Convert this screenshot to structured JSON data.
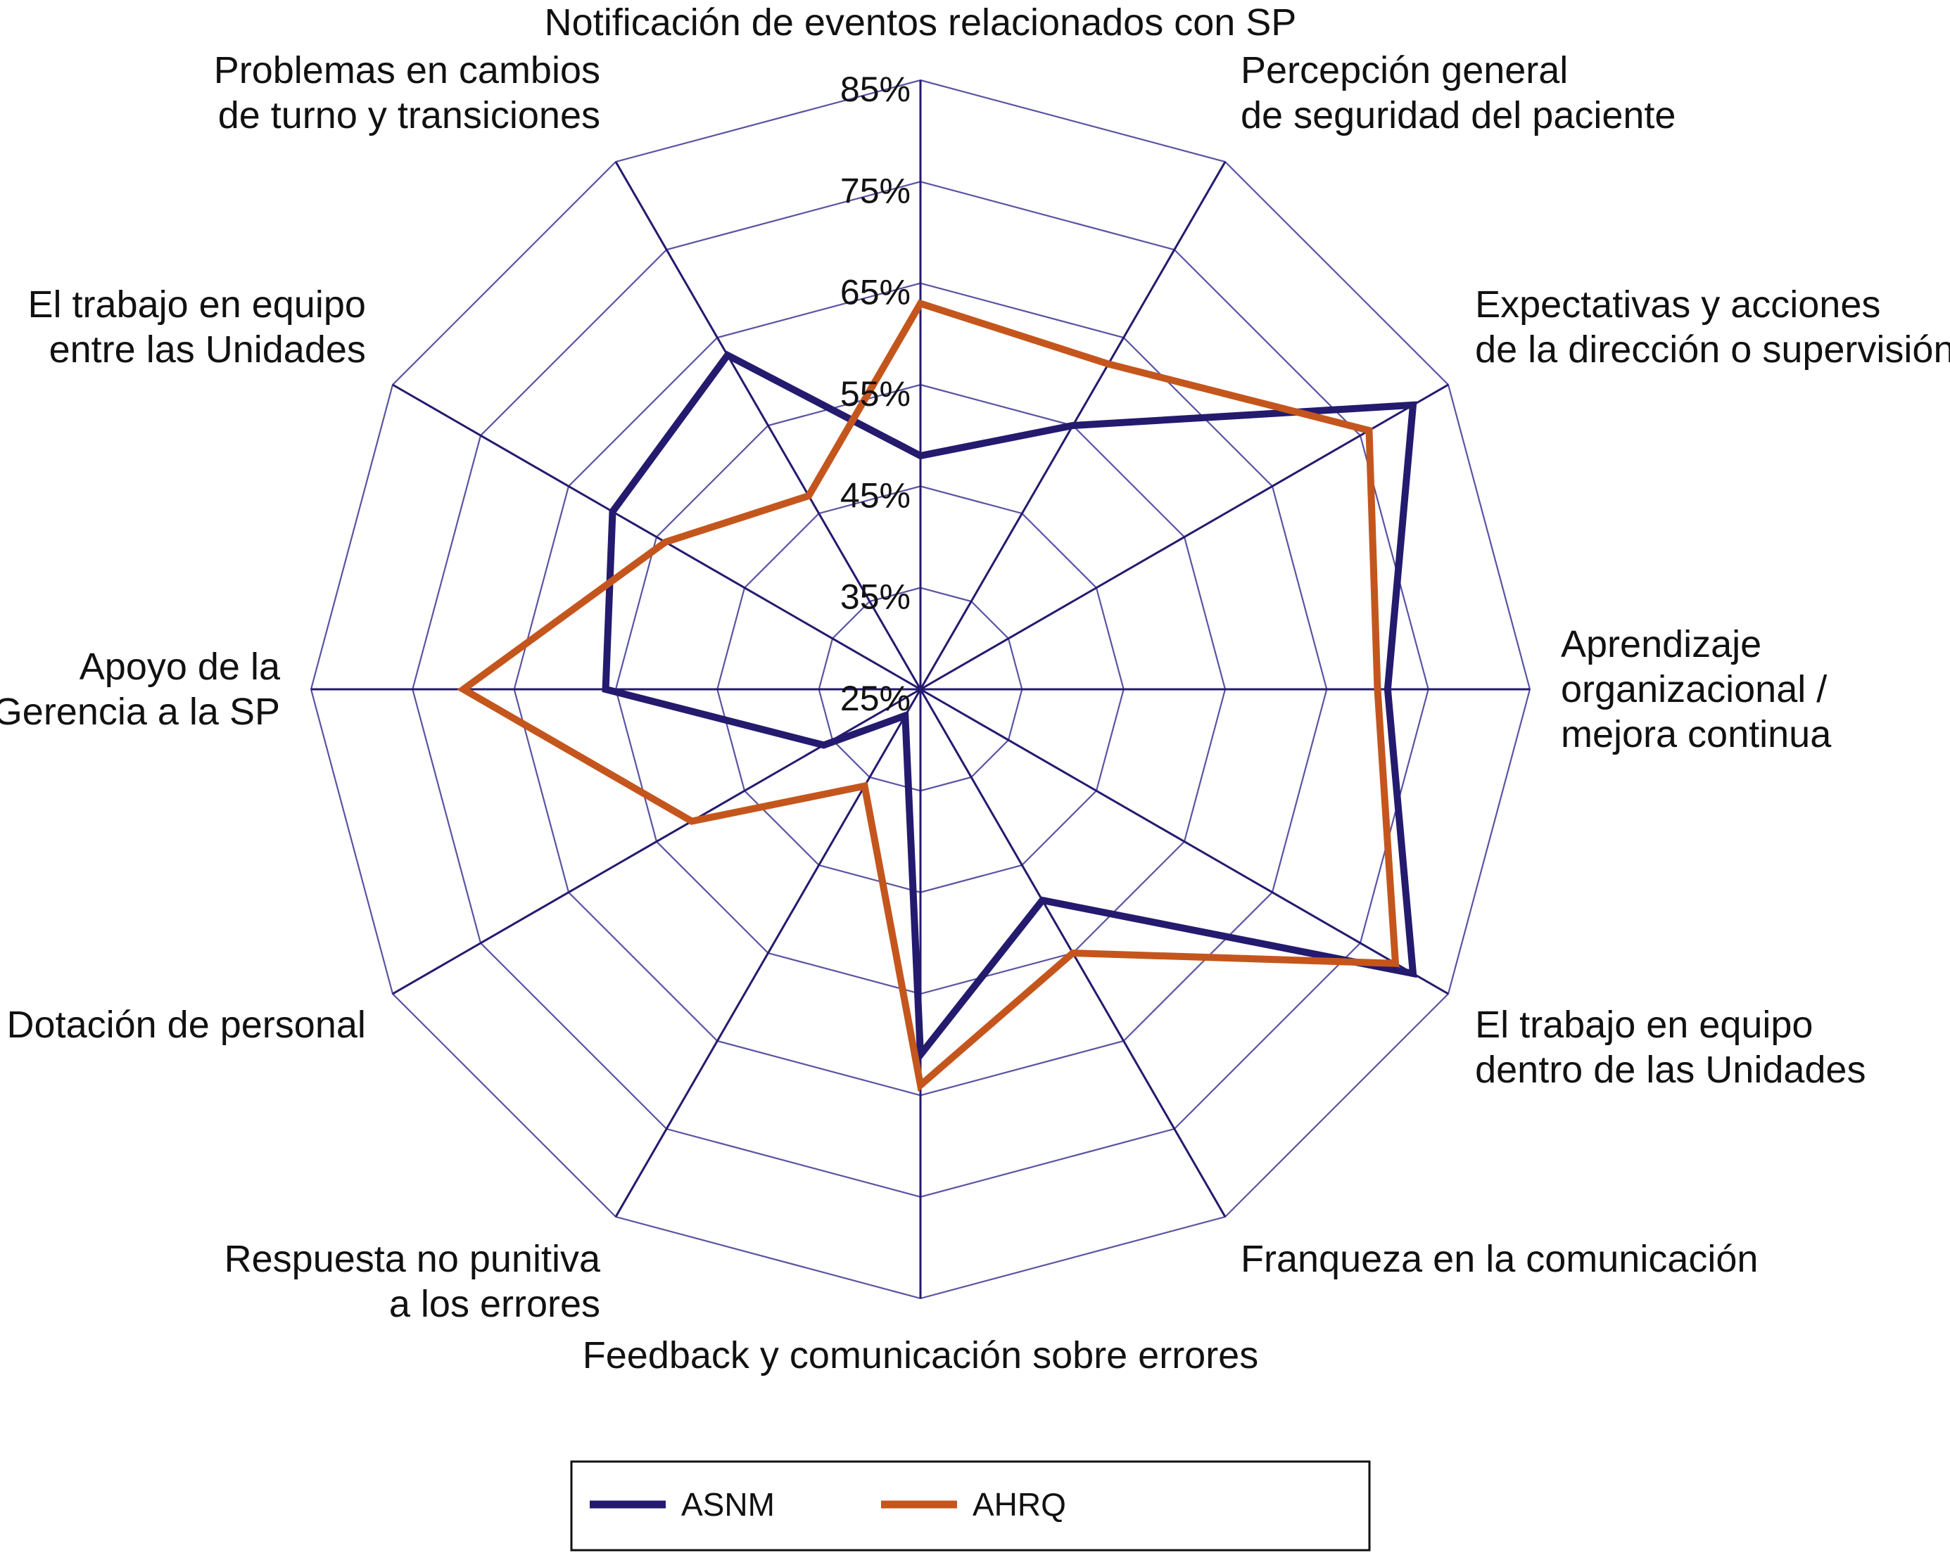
{
  "chart_data": {
    "type": "radar",
    "title": "",
    "axes": [
      {
        "label_lines": [
          "Notificación de eventos relacionados con SP"
        ]
      },
      {
        "label_lines": [
          "Percepción general",
          "de seguridad del paciente"
        ]
      },
      {
        "label_lines": [
          "Expectativas y acciones",
          "de la dirección o supervisión"
        ]
      },
      {
        "label_lines": [
          "Aprendizaje",
          "organizacional /",
          "mejora continua"
        ]
      },
      {
        "label_lines": [
          "El trabajo en equipo",
          "dentro de las Unidades"
        ]
      },
      {
        "label_lines": [
          "Franqueza en la comunicación"
        ]
      },
      {
        "label_lines": [
          "Feedback y comunicación sobre errores"
        ]
      },
      {
        "label_lines": [
          "Respuesta no punitiva",
          "a los errores"
        ]
      },
      {
        "label_lines": [
          "Dotación de personal"
        ]
      },
      {
        "label_lines": [
          "Apoyo de la",
          "Gerencia a la SP"
        ]
      },
      {
        "label_lines": [
          "El trabajo en equipo",
          "entre las Unidades"
        ]
      },
      {
        "label_lines": [
          "Problemas en cambios",
          "de turno y transiciones"
        ]
      }
    ],
    "r_ticks": [
      25,
      35,
      45,
      55,
      65,
      75,
      85
    ],
    "r_tick_labels": [
      "25%",
      "35%",
      "45%",
      "55%",
      "65%",
      "75%",
      "85%"
    ],
    "r_range": [
      25,
      85
    ],
    "series": [
      {
        "name": "ASNM",
        "color": "#241a6e",
        "values": [
          48,
          55,
          81,
          71,
          81,
          49,
          61,
          28,
          36,
          56,
          60,
          63
        ]
      },
      {
        "name": "AHRQ",
        "color": "#c4561d",
        "values": [
          63,
          62,
          76,
          70,
          79,
          55,
          64,
          36,
          51,
          70,
          54,
          47
        ]
      }
    ],
    "legend": {
      "position": "bottom-center"
    },
    "grid_color": "#5a53a3",
    "spoke_color": "#241a6e"
  }
}
